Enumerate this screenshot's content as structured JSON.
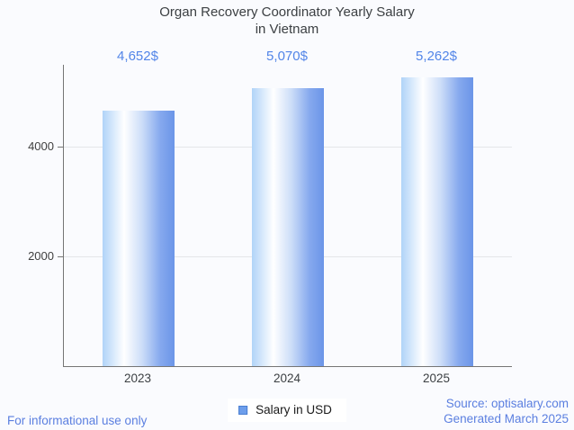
{
  "title": {
    "line1": "Organ Recovery Coordinator Yearly Salary",
    "line2": "in Vietnam"
  },
  "chart_data": {
    "type": "bar",
    "categories": [
      "2023",
      "2024",
      "2025"
    ],
    "series": [
      {
        "name": "Salary in USD",
        "values": [
          4652,
          5070,
          5262
        ]
      }
    ],
    "value_labels": [
      "4,652$",
      "5,070$",
      "5,262$"
    ],
    "title": "Organ Recovery Coordinator Yearly Salary in Vietnam",
    "xlabel": "",
    "ylabel": "",
    "yticks": [
      2000,
      4000
    ],
    "ylim": [
      0,
      5492
    ],
    "grid": true,
    "legend_position": "bottom"
  },
  "legend": {
    "label": "Salary in USD",
    "swatch_color": "#6d9eeb"
  },
  "footer": {
    "left": "For informational use only",
    "source": "Source: optisalary.com",
    "generated": "Generated March 2025"
  },
  "colors": {
    "background": "#fafbfe",
    "title": "#3c4043",
    "annotation": "#5285e8",
    "axis": "#757575",
    "gridline": "#e4e6e9",
    "bar_gradient_left": "#b0d3f8",
    "bar_gradient_mid": "#ffffff",
    "bar_gradient_right": "#6b95e8",
    "footer_text": "#5b7fe0",
    "legend_text": "#1a1a1a"
  }
}
